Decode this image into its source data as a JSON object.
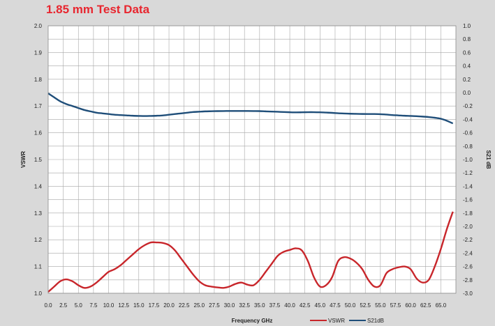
{
  "chart_data": {
    "type": "line",
    "title": "1.85 mm Test Data",
    "xlabel": "Frequency GHz",
    "ylabel": "VSWR",
    "y2label": "S21 dB",
    "xlim": [
      0,
      67.5
    ],
    "ylim": [
      1.0,
      2.0
    ],
    "y2lim": [
      -3.0,
      1.0
    ],
    "grid": true,
    "legend": "bottom-right",
    "x_ticks": [
      "0.0",
      "2.5",
      "5.0",
      "7.5",
      "10.0",
      "12.5",
      "15.0",
      "17.5",
      "20.0",
      "22.5",
      "25.0",
      "27.5",
      "30.0",
      "32.5",
      "35.0",
      "37.5",
      "40.0",
      "42.5",
      "45.0",
      "47.5",
      "50.0",
      "52.5",
      "55.0",
      "57.5",
      "60.0",
      "62.5",
      "65.0"
    ],
    "y_ticks": [
      "1.0",
      "1.1",
      "1.2",
      "1.3",
      "1.4",
      "1.5",
      "1.6",
      "1.7",
      "1.8",
      "1.9",
      "2.0"
    ],
    "y2_ticks": [
      "1.0",
      "0.8",
      "0.6",
      "0.4",
      "0.2",
      "0.0",
      "-0.2",
      "-0.4",
      "-0.6",
      "-0.8",
      "-1.0",
      "-1.2",
      "-1.4",
      "-1.6",
      "-1.8",
      "-2.0",
      "-2.2",
      "-2.4",
      "-2.6",
      "-2.8",
      "-3.0"
    ],
    "series": [
      {
        "name": "VSWR",
        "axis": "left",
        "color": "#c8262b",
        "x": [
          0,
          1,
          2,
          3,
          4,
          5,
          6,
          7,
          8,
          9,
          10,
          11,
          12,
          13,
          14,
          15,
          16,
          17,
          18,
          19,
          20,
          21,
          22,
          23,
          24,
          25,
          26,
          27,
          28,
          29,
          30,
          31,
          32,
          33,
          34,
          35,
          36,
          37,
          38,
          39,
          40,
          41,
          42,
          43,
          44,
          45,
          46,
          47,
          48,
          49,
          50,
          51,
          52,
          53,
          54,
          55,
          56,
          57,
          58,
          59,
          60,
          61,
          62,
          63,
          64,
          65,
          66,
          67
        ],
        "values": [
          1.005,
          1.025,
          1.045,
          1.052,
          1.045,
          1.03,
          1.02,
          1.025,
          1.04,
          1.06,
          1.08,
          1.09,
          1.105,
          1.125,
          1.145,
          1.165,
          1.18,
          1.19,
          1.19,
          1.188,
          1.18,
          1.16,
          1.13,
          1.1,
          1.07,
          1.045,
          1.03,
          1.025,
          1.022,
          1.02,
          1.025,
          1.035,
          1.04,
          1.032,
          1.03,
          1.05,
          1.08,
          1.11,
          1.14,
          1.155,
          1.162,
          1.168,
          1.16,
          1.12,
          1.06,
          1.025,
          1.03,
          1.06,
          1.12,
          1.135,
          1.13,
          1.115,
          1.09,
          1.05,
          1.025,
          1.03,
          1.075,
          1.09,
          1.097,
          1.1,
          1.09,
          1.055,
          1.04,
          1.05,
          1.1,
          1.165,
          1.24,
          1.305
        ]
      },
      {
        "name": "S21dB",
        "axis": "right",
        "color": "#1f4e79",
        "x": [
          0,
          1,
          2,
          3,
          4,
          5,
          6,
          7,
          8,
          9,
          10,
          11,
          12,
          13,
          14,
          15,
          16,
          17,
          18,
          19,
          20,
          21,
          22,
          23,
          24,
          25,
          26,
          27,
          28,
          29,
          30,
          31,
          32,
          33,
          34,
          35,
          36,
          37,
          38,
          39,
          40,
          41,
          42,
          43,
          44,
          45,
          46,
          47,
          48,
          49,
          50,
          51,
          52,
          53,
          54,
          55,
          56,
          57,
          58,
          59,
          60,
          61,
          62,
          63,
          64,
          65,
          66,
          67
        ],
        "values": [
          -0.01,
          -0.07,
          -0.13,
          -0.17,
          -0.2,
          -0.23,
          -0.26,
          -0.28,
          -0.3,
          -0.31,
          -0.32,
          -0.33,
          -0.335,
          -0.34,
          -0.345,
          -0.348,
          -0.35,
          -0.348,
          -0.345,
          -0.34,
          -0.33,
          -0.32,
          -0.31,
          -0.3,
          -0.29,
          -0.285,
          -0.28,
          -0.278,
          -0.276,
          -0.275,
          -0.274,
          -0.274,
          -0.274,
          -0.274,
          -0.275,
          -0.276,
          -0.28,
          -0.283,
          -0.286,
          -0.29,
          -0.293,
          -0.295,
          -0.294,
          -0.292,
          -0.292,
          -0.294,
          -0.298,
          -0.302,
          -0.308,
          -0.312,
          -0.315,
          -0.317,
          -0.319,
          -0.32,
          -0.32,
          -0.322,
          -0.328,
          -0.335,
          -0.34,
          -0.345,
          -0.348,
          -0.352,
          -0.358,
          -0.365,
          -0.375,
          -0.39,
          -0.42,
          -0.46
        ]
      }
    ]
  }
}
